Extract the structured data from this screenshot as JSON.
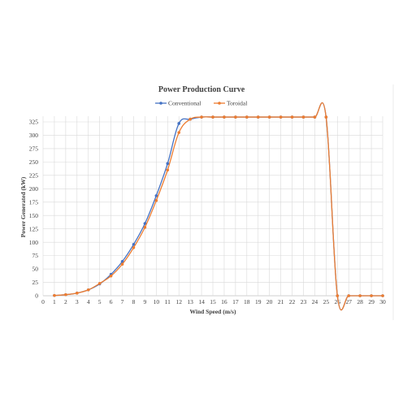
{
  "chart_data": {
    "type": "line",
    "title": "Power Production Curve",
    "xlabel": "Wind Speed (m/s)",
    "ylabel": "Power Generated (kW)",
    "xlim": [
      0,
      30
    ],
    "ylim": [
      0,
      340
    ],
    "xticks": [
      "0",
      "1",
      "2",
      "3",
      "4",
      "5",
      "6",
      "7",
      "8",
      "9",
      "10",
      "11",
      "12",
      "13",
      "14",
      "15",
      "16",
      "17",
      "18",
      "19",
      "20",
      "21",
      "22",
      "23",
      "24",
      "25",
      "26",
      "27",
      "28",
      "29",
      "30"
    ],
    "yticks": [
      "0",
      "25",
      "50",
      "75",
      "100",
      "125",
      "150",
      "175",
      "200",
      "225",
      "250",
      "275",
      "300",
      "325"
    ],
    "grid": true,
    "legend": "top",
    "series": [
      {
        "name": "Conventional",
        "color": "#4472C4",
        "x": [
          1,
          2,
          3,
          4,
          5,
          6,
          7,
          8,
          9,
          10,
          11,
          12,
          13,
          14,
          15,
          16,
          17,
          18,
          19,
          20,
          21,
          22,
          23,
          24,
          25,
          26,
          27,
          28,
          29,
          30
        ],
        "values": [
          0.5,
          2,
          5,
          11,
          22,
          40,
          64,
          96,
          135,
          187,
          247,
          322,
          330,
          334,
          334,
          334,
          334,
          334,
          334,
          334,
          334,
          334,
          334,
          334,
          334,
          0,
          0,
          0,
          0,
          0
        ]
      },
      {
        "name": "Toroidal",
        "color": "#ED7D31",
        "x": [
          1,
          2,
          3,
          4,
          5,
          6,
          7,
          8,
          9,
          10,
          11,
          12,
          13,
          14,
          15,
          16,
          17,
          18,
          19,
          20,
          21,
          22,
          23,
          24,
          25,
          26,
          27,
          28,
          29,
          30
        ],
        "values": [
          0.5,
          2,
          5,
          11,
          23,
          37,
          59,
          90,
          128,
          178,
          235,
          305,
          330,
          334,
          334,
          334,
          334,
          334,
          334,
          334,
          334,
          334,
          334,
          334,
          334,
          0,
          0,
          0,
          0,
          0
        ]
      }
    ]
  }
}
